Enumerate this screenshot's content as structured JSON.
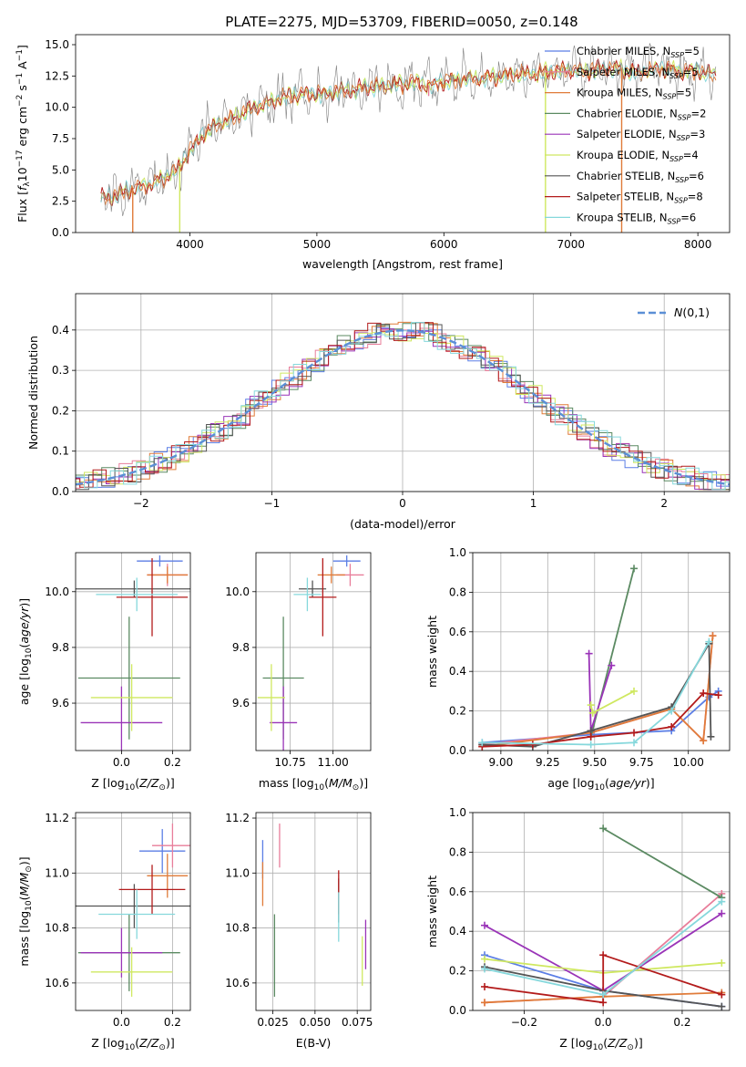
{
  "figure": {
    "title": "PLATE=2275, MJD=53709, FIBERID=0050, z=0.148"
  },
  "colors": {
    "Chabrier MILES": "#5b7ee5",
    "Salpeter MILES": "#e87d9a",
    "Kroupa MILES": "#e07b39",
    "Chabrier ELODIE": "#5b8a62",
    "Salpeter ELODIE": "#9a34b8",
    "Kroupa ELODIE": "#cfe860",
    "Chabrier STELIB": "#555555",
    "Salpeter STELIB": "#b31b1b",
    "Kroupa STELIB": "#86d8dc",
    "gauss": "#5b8fd6"
  },
  "chart_data": [
    {
      "id": "spectrum",
      "type": "line",
      "xlabel": "wavelength [Angstrom, rest frame]",
      "ylabel": "Flux [f_λ 10^-17 erg cm^-2 s^-1 A^-1]",
      "xlim": [
        3100,
        8250
      ],
      "ylim": [
        0,
        15.8
      ],
      "xticks": [
        4000,
        5000,
        6000,
        7000,
        8000
      ],
      "yticks": [
        0.0,
        2.5,
        5.0,
        7.5,
        10.0,
        12.5,
        15.0
      ],
      "grid": false,
      "legend_position": "top-right",
      "legend": [
        {
          "label": "Chabrier MILES, N",
          "sub": "SSP",
          "tail": "=5",
          "key": "Chabrier MILES"
        },
        {
          "label": "Salpeter MILES, N",
          "sub": "SSP",
          "tail": "=5",
          "key": "Salpeter MILES"
        },
        {
          "label": "Kroupa MILES, N",
          "sub": "SSP",
          "tail": "=5",
          "key": "Kroupa MILES"
        },
        {
          "label": "Chabrier ELODIE, N",
          "sub": "SSP",
          "tail": "=2",
          "key": "Chabrier ELODIE"
        },
        {
          "label": "Salpeter ELODIE, N",
          "sub": "SSP",
          "tail": "=3",
          "key": "Salpeter ELODIE"
        },
        {
          "label": "Kroupa ELODIE, N",
          "sub": "SSP",
          "tail": "=4",
          "key": "Kroupa ELODIE"
        },
        {
          "label": "Chabrier STELIB, N",
          "sub": "SSP",
          "tail": "=6",
          "key": "Chabrier STELIB"
        },
        {
          "label": "Salpeter STELIB, N",
          "sub": "SSP",
          "tail": "=8",
          "key": "Salpeter STELIB"
        },
        {
          "label": "Kroupa STELIB, N",
          "sub": "SSP",
          "tail": "=6",
          "key": "Kroupa STELIB"
        }
      ],
      "continuum": [
        [
          3300,
          2.8
        ],
        [
          3400,
          2.9
        ],
        [
          3500,
          3.3
        ],
        [
          3600,
          3.6
        ],
        [
          3700,
          3.9
        ],
        [
          3800,
          4.4
        ],
        [
          3900,
          5.0
        ],
        [
          4000,
          6.5
        ],
        [
          4100,
          7.8
        ],
        [
          4200,
          8.6
        ],
        [
          4300,
          9.0
        ],
        [
          4400,
          9.5
        ],
        [
          4500,
          10.0
        ],
        [
          4600,
          10.3
        ],
        [
          4700,
          10.7
        ],
        [
          4800,
          10.9
        ],
        [
          4900,
          11.1
        ],
        [
          5000,
          11.0
        ],
        [
          5100,
          11.2
        ],
        [
          5200,
          11.3
        ],
        [
          5300,
          11.4
        ],
        [
          5400,
          11.6
        ],
        [
          5500,
          11.7
        ],
        [
          5600,
          11.8
        ],
        [
          5700,
          11.9
        ],
        [
          5800,
          12.0
        ],
        [
          5900,
          11.7
        ],
        [
          6000,
          12.1
        ],
        [
          6100,
          12.2
        ],
        [
          6200,
          12.3
        ],
        [
          6300,
          12.3
        ],
        [
          6400,
          12.4
        ],
        [
          6500,
          12.6
        ],
        [
          6600,
          12.7
        ],
        [
          6700,
          12.6
        ],
        [
          6800,
          12.8
        ],
        [
          6900,
          12.9
        ],
        [
          7000,
          13.0
        ],
        [
          7100,
          12.9
        ],
        [
          7200,
          13.0
        ],
        [
          7300,
          13.1
        ],
        [
          7400,
          13.0
        ],
        [
          7500,
          12.8
        ],
        [
          7600,
          12.9
        ],
        [
          7700,
          13.1
        ],
        [
          7800,
          13.0
        ],
        [
          7900,
          12.8
        ],
        [
          8000,
          12.9
        ],
        [
          8100,
          12.6
        ]
      ],
      "dips": [
        {
          "x": 3550,
          "y": 0.0,
          "key": "Kroupa MILES"
        },
        {
          "x": 3920,
          "y": 0.0,
          "key": "Kroupa ELODIE"
        },
        {
          "x": 5880,
          "y": 10.9,
          "key": "Salpeter MILES"
        },
        {
          "x": 6800,
          "y": 0.0,
          "key": "Kroupa ELODIE"
        },
        {
          "x": 7400,
          "y": 0.0,
          "key": "Kroupa MILES"
        }
      ]
    },
    {
      "id": "residuals",
      "type": "step",
      "xlabel": "(data-model)/error",
      "ylabel": "Normed distribution",
      "xlim": [
        -2.5,
        2.5
      ],
      "ylim": [
        0,
        0.49
      ],
      "xticks": [
        -2,
        -1,
        0,
        1,
        2
      ],
      "yticks": [
        0.0,
        0.1,
        0.2,
        0.3,
        0.4
      ],
      "grid": true,
      "legend_position": "top-right",
      "gauss_label": "N(0,1)",
      "bin_width": 0.1
    },
    {
      "id": "age_vs_Z",
      "type": "errorbar",
      "xlabel": "Z [log10(Z/Z⊙)]",
      "ylabel": "age [log10(age/yr)]",
      "xlim": [
        -0.18,
        0.27
      ],
      "ylim": [
        9.43,
        10.14
      ],
      "xticks": [
        0.0,
        0.2
      ],
      "xtick_labels": [
        "0.0",
        "0.2"
      ],
      "yticks": [
        9.6,
        9.8,
        10.0
      ],
      "grid": true,
      "points": [
        {
          "key": "Chabrier MILES",
          "x": 0.15,
          "xerr": 0.09,
          "y": 10.11,
          "yerr": 0.02
        },
        {
          "key": "Salpeter MILES",
          "x": 0.18,
          "xerr": 0.08,
          "y": 10.06,
          "yerr": 0.04
        },
        {
          "key": "Kroupa MILES",
          "x": 0.18,
          "xerr": 0.08,
          "y": 10.06,
          "yerr": 0.03
        },
        {
          "key": "Chabrier ELODIE",
          "x": 0.03,
          "xerr": 0.2,
          "y": 9.69,
          "yerr": 0.22
        },
        {
          "key": "Salpeter ELODIE",
          "x": 0.0,
          "xerr": 0.16,
          "y": 9.53,
          "yerr": 0.13
        },
        {
          "key": "Kroupa ELODIE",
          "x": 0.04,
          "xerr": 0.16,
          "y": 9.62,
          "yerr": 0.12
        },
        {
          "key": "Chabrier STELIB",
          "x": 0.05,
          "xerr": 0.23,
          "y": 10.01,
          "yerr": 0.03
        },
        {
          "key": "Salpeter STELIB",
          "x": 0.12,
          "xerr": 0.14,
          "y": 9.98,
          "yerr": 0.14
        },
        {
          "key": "Kroupa STELIB",
          "x": 0.06,
          "xerr": 0.16,
          "y": 9.99,
          "yerr": 0.06
        }
      ]
    },
    {
      "id": "age_vs_mass",
      "type": "errorbar",
      "xlabel": "mass [log10(M/M⊙)]",
      "ylabel": "",
      "xlim": [
        10.55,
        11.22
      ],
      "ylim": [
        9.43,
        10.14
      ],
      "xticks": [
        10.75,
        11.0
      ],
      "xtick_labels": [
        "10.75",
        "11.00"
      ],
      "yticks": [
        9.6,
        9.8,
        10.0
      ],
      "grid": true,
      "points": [
        {
          "key": "Chabrier MILES",
          "x": 11.08,
          "xerr": 0.08,
          "y": 10.11,
          "yerr": 0.02
        },
        {
          "key": "Salpeter MILES",
          "x": 11.1,
          "xerr": 0.08,
          "y": 10.06,
          "yerr": 0.04
        },
        {
          "key": "Kroupa MILES",
          "x": 10.99,
          "xerr": 0.08,
          "y": 10.06,
          "yerr": 0.03
        },
        {
          "key": "Chabrier ELODIE",
          "x": 10.71,
          "xerr": 0.12,
          "y": 9.69,
          "yerr": 0.22
        },
        {
          "key": "Salpeter ELODIE",
          "x": 10.71,
          "xerr": 0.08,
          "y": 9.53,
          "yerr": 0.13
        },
        {
          "key": "Kroupa ELODIE",
          "x": 10.64,
          "xerr": 0.08,
          "y": 9.62,
          "yerr": 0.12
        },
        {
          "key": "Chabrier STELIB",
          "x": 10.88,
          "xerr": 0.08,
          "y": 10.01,
          "yerr": 0.03
        },
        {
          "key": "Salpeter STELIB",
          "x": 10.94,
          "xerr": 0.08,
          "y": 9.98,
          "yerr": 0.14
        },
        {
          "key": "Kroupa STELIB",
          "x": 10.85,
          "xerr": 0.08,
          "y": 9.99,
          "yerr": 0.06
        }
      ]
    },
    {
      "id": "weight_vs_age",
      "type": "line",
      "xlabel": "age [log10(age/yr)]",
      "ylabel": "mass weight",
      "xlim": [
        8.85,
        10.22
      ],
      "ylim": [
        0,
        1.0
      ],
      "xticks": [
        9.0,
        9.25,
        9.5,
        9.75,
        10.0
      ],
      "xtick_labels": [
        "9.00",
        "9.25",
        "9.50",
        "9.75",
        "10.00"
      ],
      "yticks": [
        0.0,
        0.2,
        0.4,
        0.6,
        0.8,
        1.0
      ],
      "grid": true,
      "series": [
        {
          "key": "Chabrier MILES",
          "x": [
            8.9,
            9.48,
            9.91,
            10.11,
            10.16
          ],
          "y": [
            0.04,
            0.08,
            0.1,
            0.27,
            0.3
          ]
        },
        {
          "key": "Salpeter MILES",
          "x": [
            8.9,
            9.48,
            9.91,
            10.08,
            10.13
          ],
          "y": [
            0.03,
            0.09,
            0.21,
            0.05,
            0.58
          ]
        },
        {
          "key": "Kroupa MILES",
          "x": [
            8.9,
            9.48,
            9.91,
            10.08,
            10.13
          ],
          "y": [
            0.02,
            0.09,
            0.21,
            0.05,
            0.58
          ]
        },
        {
          "key": "Chabrier ELODIE",
          "x": [
            9.48,
            9.71
          ],
          "y": [
            0.07,
            0.92
          ]
        },
        {
          "key": "Salpeter ELODIE",
          "x": [
            9.47,
            9.48,
            9.59
          ],
          "y": [
            0.49,
            0.1,
            0.43
          ]
        },
        {
          "key": "Kroupa ELODIE",
          "x": [
            9.48,
            9.49,
            9.71
          ],
          "y": [
            0.23,
            0.19,
            0.3
          ]
        },
        {
          "key": "Chabrier STELIB",
          "x": [
            8.9,
            9.17,
            9.48,
            9.91,
            10.11,
            10.12
          ],
          "y": [
            0.03,
            0.02,
            0.1,
            0.22,
            0.54,
            0.07
          ]
        },
        {
          "key": "Salpeter STELIB",
          "x": [
            8.9,
            9.17,
            9.48,
            9.71,
            9.91,
            10.08,
            10.16
          ],
          "y": [
            0.02,
            0.03,
            0.07,
            0.09,
            0.12,
            0.29,
            0.28
          ]
        },
        {
          "key": "Kroupa STELIB",
          "x": [
            8.9,
            9.48,
            9.71,
            9.91,
            10.11
          ],
          "y": [
            0.04,
            0.03,
            0.04,
            0.2,
            0.55
          ]
        }
      ]
    },
    {
      "id": "mass_vs_Z",
      "type": "errorbar",
      "xlabel": "Z [log10(Z/Z⊙)]",
      "ylabel": "mass [log10(M/M⊙)]",
      "xlim": [
        -0.18,
        0.27
      ],
      "ylim": [
        10.5,
        11.22
      ],
      "xticks": [
        0.0,
        0.2
      ],
      "xtick_labels": [
        "0.0",
        "0.2"
      ],
      "yticks": [
        10.6,
        10.8,
        11.0,
        11.2
      ],
      "grid": true,
      "points": [
        {
          "key": "Chabrier MILES",
          "x": 0.16,
          "xerr": 0.09,
          "y": 11.08,
          "yerr": 0.08
        },
        {
          "key": "Salpeter MILES",
          "x": 0.2,
          "xerr": 0.08,
          "y": 11.1,
          "yerr": 0.08
        },
        {
          "key": "Kroupa MILES",
          "x": 0.18,
          "xerr": 0.08,
          "y": 10.99,
          "yerr": 0.08
        },
        {
          "key": "Chabrier ELODIE",
          "x": 0.03,
          "xerr": 0.2,
          "y": 10.71,
          "yerr": 0.14
        },
        {
          "key": "Salpeter ELODIE",
          "x": 0.0,
          "xerr": 0.16,
          "y": 10.71,
          "yerr": 0.09
        },
        {
          "key": "Kroupa ELODIE",
          "x": 0.04,
          "xerr": 0.16,
          "y": 10.64,
          "yerr": 0.09
        },
        {
          "key": "Chabrier STELIB",
          "x": 0.05,
          "xerr": 0.23,
          "y": 10.88,
          "yerr": 0.08
        },
        {
          "key": "Salpeter STELIB",
          "x": 0.12,
          "xerr": 0.13,
          "y": 10.94,
          "yerr": 0.09
        },
        {
          "key": "Kroupa STELIB",
          "x": 0.06,
          "xerr": 0.15,
          "y": 10.85,
          "yerr": 0.09
        }
      ]
    },
    {
      "id": "mass_vs_ebv",
      "type": "errorbar",
      "xlabel": "E(B-V)",
      "ylabel": "",
      "xlim": [
        0.015,
        0.083
      ],
      "ylim": [
        10.5,
        11.22
      ],
      "xticks": [
        0.025,
        0.05,
        0.075
      ],
      "xtick_labels": [
        "0.025",
        "0.050",
        "0.075"
      ],
      "yticks": [
        10.6,
        10.8,
        11.0,
        11.2
      ],
      "grid": true,
      "points": [
        {
          "key": "Chabrier MILES",
          "x": 0.019,
          "xerr": 0.0,
          "y": 11.05,
          "yerr": 0.07
        },
        {
          "key": "Salpeter MILES",
          "x": 0.029,
          "xerr": 0.0,
          "y": 11.1,
          "yerr": 0.08
        },
        {
          "key": "Kroupa MILES",
          "x": 0.019,
          "xerr": 0.0,
          "y": 10.96,
          "yerr": 0.08
        },
        {
          "key": "Chabrier ELODIE",
          "x": 0.026,
          "xerr": 0.0,
          "y": 10.7,
          "yerr": 0.15
        },
        {
          "key": "Salpeter ELODIE",
          "x": 0.08,
          "xerr": 0.0,
          "y": 10.74,
          "yerr": 0.09
        },
        {
          "key": "Kroupa ELODIE",
          "x": 0.078,
          "xerr": 0.0,
          "y": 10.68,
          "yerr": 0.09
        },
        {
          "key": "Chabrier STELIB",
          "x": 0.064,
          "xerr": 0.0,
          "y": 10.9,
          "yerr": 0.08
        },
        {
          "key": "Salpeter STELIB",
          "x": 0.064,
          "xerr": 0.0,
          "y": 10.93,
          "yerr": 0.08
        },
        {
          "key": "Kroupa STELIB",
          "x": 0.064,
          "xerr": 0.0,
          "y": 10.84,
          "yerr": 0.09
        }
      ]
    },
    {
      "id": "weight_vs_Z",
      "type": "line",
      "xlabel": "Z [log10(Z/Z⊙)]",
      "ylabel": "mass weight",
      "xlim": [
        -0.33,
        0.32
      ],
      "ylim": [
        0,
        1.0
      ],
      "xticks": [
        -0.2,
        0.0,
        0.2
      ],
      "xtick_labels": [
        "−0.2",
        "0.0",
        "0.2"
      ],
      "yticks": [
        0.0,
        0.2,
        0.4,
        0.6,
        0.8,
        1.0
      ],
      "grid": true,
      "series": [
        {
          "key": "Chabrier MILES",
          "x": [
            -0.3,
            0.0,
            0.3
          ],
          "y": [
            0.28,
            0.1,
            0.02
          ]
        },
        {
          "key": "Salpeter MILES",
          "x": [
            -0.3,
            0.0,
            0.3
          ],
          "y": [
            0.04,
            0.07,
            0.59
          ]
        },
        {
          "key": "Kroupa MILES",
          "x": [
            -0.3,
            0.0,
            0.3
          ],
          "y": [
            0.04,
            0.07,
            0.09
          ]
        },
        {
          "key": "Chabrier ELODIE",
          "x": [
            0.0,
            0.3
          ],
          "y": [
            0.92,
            0.57
          ]
        },
        {
          "key": "Salpeter ELODIE",
          "x": [
            -0.3,
            0.0,
            0.3
          ],
          "y": [
            0.43,
            0.1,
            0.49
          ]
        },
        {
          "key": "Kroupa ELODIE",
          "x": [
            -0.3,
            0.0,
            0.3
          ],
          "y": [
            0.26,
            0.19,
            0.24
          ]
        },
        {
          "key": "Chabrier STELIB",
          "x": [
            -0.3,
            0.0,
            0.3
          ],
          "y": [
            0.22,
            0.1,
            0.02
          ]
        },
        {
          "key": "Salpeter STELIB",
          "x": [
            -0.3,
            0.0,
            0.0,
            0.3
          ],
          "y": [
            0.12,
            0.04,
            0.28,
            0.08
          ]
        },
        {
          "key": "Kroupa STELIB",
          "x": [
            -0.3,
            0.0,
            0.3
          ],
          "y": [
            0.21,
            0.08,
            0.55
          ]
        }
      ]
    }
  ]
}
